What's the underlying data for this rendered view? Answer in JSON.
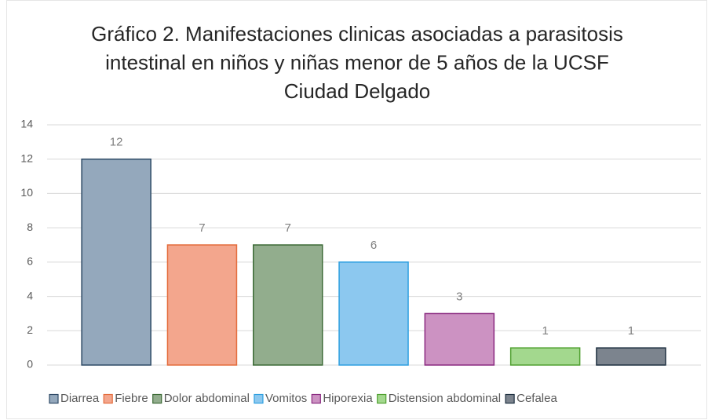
{
  "chart_data": {
    "type": "bar",
    "title": "Gráfico 2. Manifestaciones clinicas asociadas a parasitosis intestinal en niños y niñas menor de 5 años de la UCSF Ciudad Delgado",
    "series": [
      {
        "name": "Diarrea",
        "color": "#94a8bc",
        "edgecolor": "#2e4a66",
        "values": [
          12
        ]
      },
      {
        "name": "Fiebre",
        "color": "#f3a68d",
        "edgecolor": "#e46c3c",
        "values": [
          7
        ]
      },
      {
        "name": "Dolor abdominal",
        "color": "#92ad8d",
        "edgecolor": "#3c6a36",
        "values": [
          7
        ]
      },
      {
        "name": "Vomitos",
        "color": "#8cc8ef",
        "edgecolor": "#2e9fe0",
        "values": [
          6
        ]
      },
      {
        "name": "Hiporexia",
        "color": "#cc92c2",
        "edgecolor": "#8a2a80",
        "values": [
          3
        ]
      },
      {
        "name": "Distension abdominal",
        "color": "#a3d88e",
        "edgecolor": "#50a030",
        "values": [
          1
        ]
      },
      {
        "name": "Cefalea",
        "color": "#7c848e",
        "edgecolor": "#1e3040",
        "values": [
          1
        ]
      }
    ],
    "ylim": [
      0,
      14
    ],
    "yticks": [
      0,
      2,
      4,
      6,
      8,
      10,
      12,
      14
    ],
    "grid": true,
    "legend": "bottom"
  }
}
